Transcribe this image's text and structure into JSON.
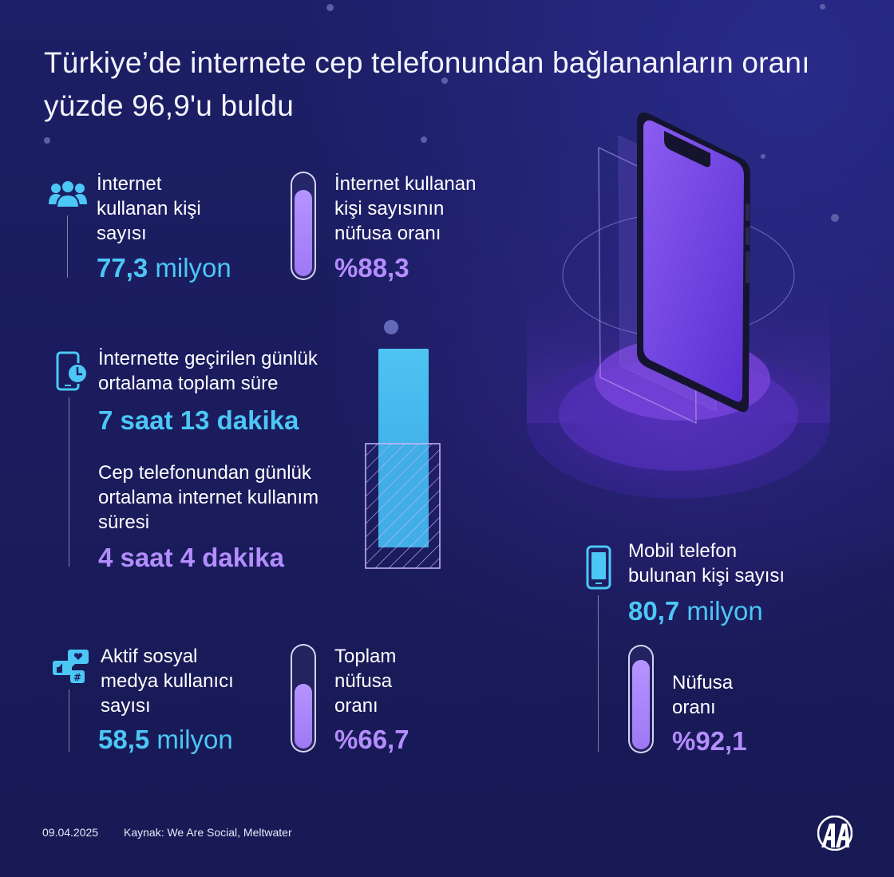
{
  "title": "Türkiye’de internete cep telefonundan bağlananların oranı yüzde 96,9'u buldu",
  "internet_users": {
    "label": "İnternet kullanan kişi sayısı",
    "value": "77,3",
    "unit": "milyon"
  },
  "internet_share": {
    "label": "İnternet kullanan kişi sayısının nüfusa oranı",
    "value": "%88,3",
    "fill": 0.883
  },
  "daily_total": {
    "label": "İnternette geçirilen günlük ortalama toplam süre",
    "value": "7 saat 13 dakika"
  },
  "daily_mobile": {
    "label": "Cep telefonundan günlük ortalama internet kullanım süresi",
    "value": "4 saat 4 dakika"
  },
  "social_users": {
    "label": "Aktif sosyal medya kullanıcı sayısı",
    "value": "58,5",
    "unit": "milyon"
  },
  "social_share": {
    "label": "Toplam nüfusa oranı",
    "value": "%66,7",
    "fill": 0.667
  },
  "mobile_owners": {
    "label": "Mobil telefon bulunan kişi sayısı",
    "value": "80,7",
    "unit": "milyon"
  },
  "mobile_share": {
    "label": "Nüfusa oranı",
    "value": "%92,1",
    "fill": 0.921
  },
  "footer": {
    "date": "09.04.2025",
    "source": "Kaynak: We Are Social, Meltwater"
  },
  "logo": {
    "text": "AA"
  },
  "colors": {
    "cyan": "#4cc7f5",
    "purple": "#b48dff",
    "background": "#1b1d60"
  },
  "icons": [
    "users-icon",
    "phone-clock-icon",
    "social-media-icon",
    "mobile-phone-icon"
  ]
}
